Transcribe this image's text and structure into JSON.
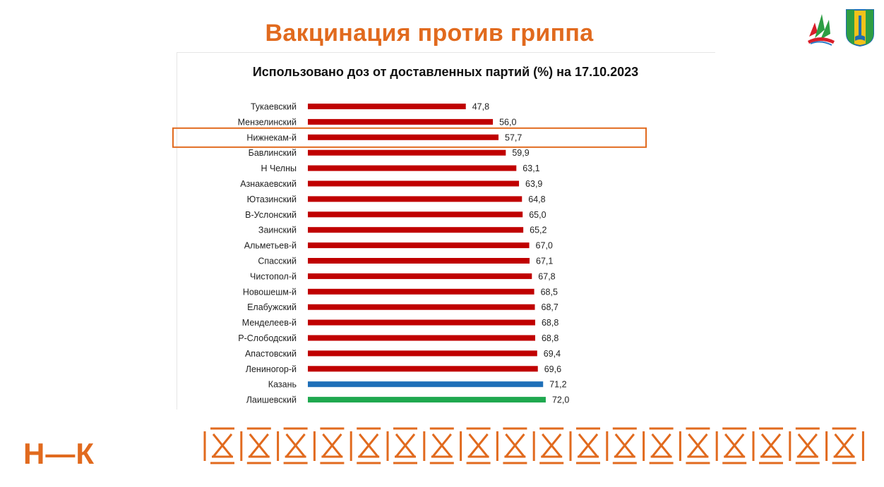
{
  "slide": {
    "title": "Вакцинация против гриппа",
    "logo_text": "Н—К",
    "accent_color": "#E16A1E"
  },
  "chart_data": {
    "type": "bar",
    "orientation": "horizontal",
    "title": "Использовано доз от доставленных партий (%) на 17.10.2023",
    "xlabel": "",
    "ylabel": "",
    "categories": [
      "Тукаевский",
      "Мензелинский",
      "Нижнекам-й",
      "Бавлинский",
      "Н Челны",
      "Азнакаевский",
      "Ютазинский",
      "В-Услонский",
      "Заинский",
      "Альметьев-й",
      "Спасский",
      "Чистопол-й",
      "Новошешм-й",
      "Елабужский",
      "Менделеев-й",
      "Р-Слободский",
      "Апастовский",
      "Лениногор-й",
      "Казань",
      "Лаишевский"
    ],
    "values": [
      47.8,
      56.0,
      57.7,
      59.9,
      63.1,
      63.9,
      64.8,
      65.0,
      65.2,
      67.0,
      67.1,
      67.8,
      68.5,
      68.7,
      68.8,
      68.8,
      69.4,
      69.6,
      71.2,
      72.0
    ],
    "value_labels": [
      "47,8",
      "56,0",
      "57,7",
      "59,9",
      "63,1",
      "63,9",
      "64,8",
      "65,0",
      "65,2",
      "67,0",
      "67,1",
      "67,8",
      "68,5",
      "68,7",
      "68,8",
      "68,8",
      "69,4",
      "69,6",
      "71,2",
      "72,0"
    ],
    "colors": {
      "default": "#C00000",
      "Казань": "#1F6FB8",
      "Лаишевский": "#1FA84F"
    },
    "highlight": {
      "category": "Нижнекам-й",
      "border_color": "#E16A1E"
    },
    "xlim": [
      0,
      72
    ],
    "grid": false,
    "legend": "none"
  },
  "icons": {
    "emblem_left": "tatarstan-emblem-icon",
    "emblem_right": "nizhnekamsk-coat-of-arms-icon"
  }
}
